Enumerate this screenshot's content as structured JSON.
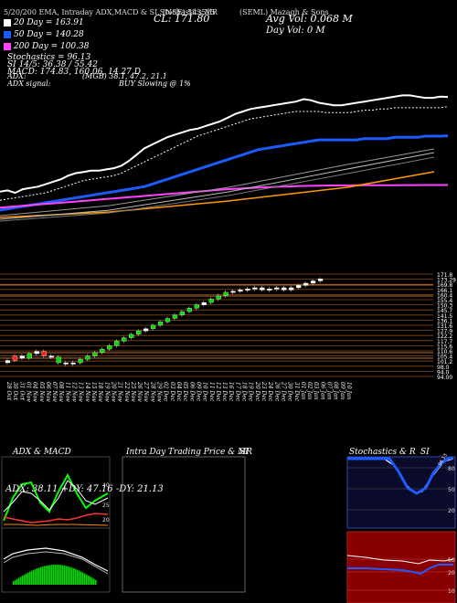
{
  "header": {
    "indicators_text": "5/20/200 EMA, Intraday ADX,MACD & SI,Stochastics,MR",
    "code": "(NSE) 543515",
    "company": "(SEML) Mazagh & Sons",
    "cl_text": "CL: 171.80",
    "avg_vol_text": "Avg Vol: 0.068 M",
    "day_vol_text": "Day Vol: 0 M"
  },
  "legend": [
    {
      "label": "20 Day = 163.91",
      "color": "#ffffff"
    },
    {
      "label": "50 Day = 140.28",
      "color": "#1e5bff"
    },
    {
      "label": "200 Day = 100.38",
      "color": "#ff44ff"
    }
  ],
  "indicators": {
    "stochastics": "Stochastics = 96.13",
    "si": "SI 14/5: 36.38 / 55.42",
    "macd": "MACD: 174.83, 160.06, 14.27 D",
    "adx": "ADX:",
    "adx_values": "(MGB) 38.1, 47.2, 21.1",
    "adx_signal": "ADX signal:",
    "buy_signal": "BUY Slowing @ 1%"
  },
  "price_axis": [
    "171.8",
    "173.29",
    "169.8",
    "166.1",
    "160.4",
    "155.4",
    "150.3",
    "145.7",
    "141.5",
    "136.1",
    "131.6",
    "127.9",
    "122.2",
    "117.7",
    "115.6",
    "110.6",
    "105.4",
    "101.2",
    "98.0",
    "94.0",
    "94.00"
  ],
  "date_labels": [
    "28 Oct",
    "30 Oct",
    "31 Oct",
    "01 Nov",
    "04 Nov",
    "05 Nov",
    "06 Nov",
    "07 Nov",
    "08 Nov",
    "11 Nov",
    "12 Nov",
    "13 Nov",
    "14 Nov",
    "15 Nov",
    "18 Nov",
    "19 Nov",
    "20 Nov",
    "21 Nov",
    "22 Nov",
    "25 Nov",
    "26 Nov",
    "27 Nov",
    "28 Nov",
    "29 Nov",
    "02 Dec",
    "03 Dec",
    "04 Dec",
    "05 Dec",
    "06 Dec",
    "09 Dec",
    "10 Dec",
    "11 Dec",
    "12 Dec",
    "13 Dec",
    "16 Dec",
    "17 Dec",
    "18 Dec",
    "19 Dec",
    "20 Dec",
    "23 Dec",
    "24 Dec",
    "26 Dec",
    "27 Dec",
    "30 Dec",
    "31 Dec",
    "01 Jan",
    "02 Jan",
    "03 Jan",
    "06 Jan",
    "07 Jan",
    "08 Jan",
    "09 Jan",
    "10 Jan"
  ],
  "panels": {
    "adx_title": "ADX & MACD",
    "adx_readout": "ADX: 38.11  +DY: 47.16  -DY: 21.13",
    "intra_title": "Intra Day Trading Price & MR",
    "intra_si": "SI",
    "stoch_title": "Stochastics & R",
    "stoch_si": "SI",
    "stoch_ticks": [
      "80",
      "50",
      "20"
    ],
    "si_ticks": [
      "50",
      "20",
      "10"
    ],
    "adx_ticks": [
      "40",
      "25",
      "20"
    ],
    "stoch_value_label": "96.13"
  },
  "chart_data": {
    "type": "line",
    "title": "",
    "series": [
      {
        "name": "Price",
        "values": [
          95,
          96,
          94,
          97,
          98,
          99,
          101,
          103,
          105,
          108,
          110,
          111,
          112,
          112,
          113,
          114,
          116,
          120,
          125,
          130,
          133,
          136,
          139,
          141,
          143,
          145,
          146,
          148,
          150,
          152,
          155,
          158,
          160,
          162,
          163,
          164,
          165,
          166,
          167,
          168,
          170,
          169,
          167,
          166,
          165,
          165,
          166,
          167,
          168,
          169,
          170,
          171,
          172,
          173,
          173,
          172,
          171,
          171,
          172,
          171.8
        ]
      },
      {
        "name": "20 Day",
        "values": [
          88,
          89,
          90,
          91,
          92,
          93,
          94,
          96,
          98,
          100,
          102,
          104,
          105,
          106,
          107,
          108,
          110,
          113,
          116,
          119,
          122,
          125,
          128,
          131,
          134,
          137,
          140,
          142,
          144,
          146,
          148,
          150,
          152,
          154,
          155,
          156,
          157,
          158,
          159,
          160,
          160,
          160,
          160,
          159,
          159,
          159,
          159,
          160,
          161,
          161,
          162,
          162,
          163,
          163,
          163,
          163,
          163,
          163,
          163,
          163.91
        ]
      },
      {
        "name": "50 Day",
        "values": [
          80,
          81,
          82,
          83,
          84,
          85,
          86,
          87,
          88,
          89,
          90,
          91,
          92,
          93,
          94,
          95,
          96,
          97,
          98,
          99,
          101,
          103,
          105,
          107,
          109,
          111,
          113,
          115,
          117,
          119,
          121,
          123,
          125,
          127,
          129,
          130,
          131,
          132,
          133,
          134,
          135,
          136,
          137,
          137,
          137,
          137,
          137,
          137,
          138,
          138,
          138,
          138,
          139,
          139,
          139,
          139,
          140,
          140,
          140,
          140.28
        ]
      },
      {
        "name": "200 Day",
        "values": [
          82,
          82.5,
          83,
          83.5,
          84,
          84.5,
          85,
          85.5,
          86,
          86.5,
          87,
          87.5,
          88,
          88.5,
          89,
          89.5,
          90,
          90.5,
          91,
          91.5,
          92,
          92.5,
          93,
          93.5,
          94,
          94.5,
          95,
          95.5,
          96,
          96.5,
          97,
          97.3,
          97.6,
          97.9,
          98.2,
          98.5,
          98.8,
          99,
          99.2,
          99.4,
          99.6,
          99.7,
          99.8,
          99.9,
          100,
          100.05,
          100.1,
          100.12,
          100.15,
          100.18,
          100.2,
          100.22,
          100.25,
          100.28,
          100.3,
          100.32,
          100.34,
          100.36,
          100.37,
          100.38
        ]
      }
    ],
    "candles_close": [
      100,
      104,
      102,
      106,
      108,
      104,
      103,
      98,
      97,
      98,
      101,
      104,
      107,
      110,
      113,
      117,
      120,
      123,
      126,
      128,
      131,
      134,
      137,
      140,
      143,
      146,
      149,
      151,
      154,
      157,
      160,
      161,
      162,
      163,
      164,
      162,
      163,
      164,
      162,
      164,
      166,
      168,
      170,
      171.8
    ],
    "candles_dir": [
      1,
      -1,
      1,
      1,
      -1,
      -1,
      -1,
      1,
      -1,
      1,
      1,
      1,
      1,
      1,
      1,
      1,
      1,
      1,
      1,
      1,
      1,
      1,
      1,
      1,
      1,
      1,
      1,
      1,
      1,
      1,
      1,
      1,
      1,
      1,
      -1,
      1,
      1,
      -1,
      1,
      1,
      1,
      1,
      1,
      1
    ]
  }
}
